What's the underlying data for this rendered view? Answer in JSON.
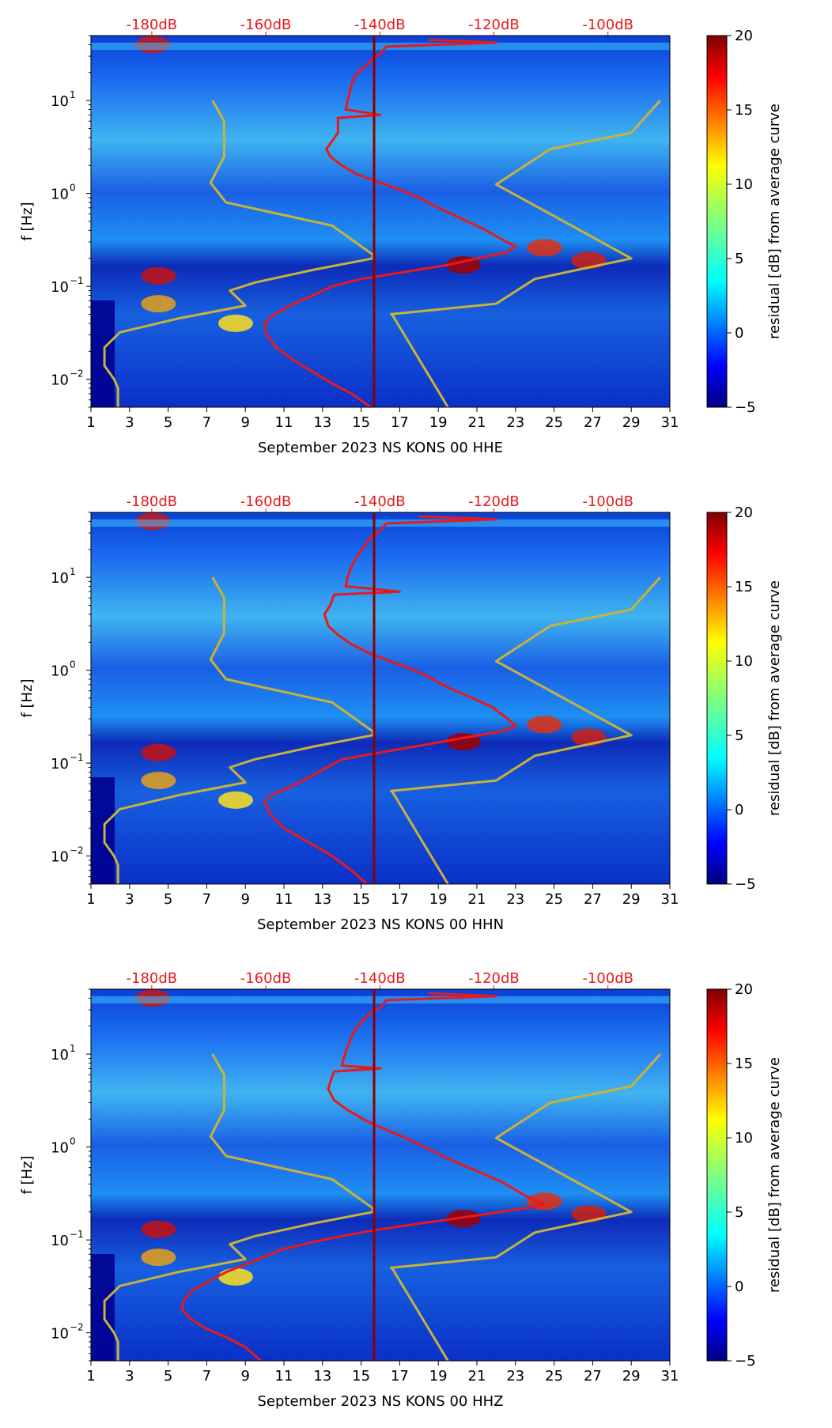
{
  "chart_data": [
    {
      "type": "heatmap",
      "title": "",
      "xlabel": "September 2023 NS KONS 00 HHE",
      "ylabel": "f [Hz]",
      "colorbar_label": "residual [dB] from average curve",
      "x_ticks": [
        1,
        3,
        5,
        7,
        9,
        11,
        13,
        15,
        17,
        19,
        21,
        23,
        25,
        27,
        29,
        31
      ],
      "x_range": [
        1,
        31
      ],
      "y_ticks": [
        {
          "value": 10,
          "label": "10",
          "exp": "1"
        },
        {
          "value": 1,
          "label": "10",
          "exp": "0"
        },
        {
          "value": 0.1,
          "label": "10",
          "exp": "−1"
        },
        {
          "value": 0.01,
          "label": "10",
          "exp": "−2"
        }
      ],
      "y_range": [
        0.005,
        50
      ],
      "colorbar_ticks": [
        20,
        15,
        10,
        5,
        0,
        -5
      ],
      "colorbar_range": [
        -5,
        20
      ],
      "top_axis_labels": [
        "-180dB",
        "-160dB",
        "-140dB",
        "-120dB",
        "-100dB"
      ],
      "series": [
        {
          "name": "average psd (red)",
          "points": [
            [
              18.5,
              45
            ],
            [
              21,
              43
            ],
            [
              22,
              42
            ],
            [
              16.3,
              38
            ],
            [
              16,
              32
            ],
            [
              15.6,
              28
            ],
            [
              15.3,
              24
            ],
            [
              14.8,
              20
            ],
            [
              14.5,
              15
            ],
            [
              14.4,
              12
            ],
            [
              14.3,
              10
            ],
            [
              14.2,
              8
            ],
            [
              16,
              7
            ],
            [
              13.8,
              6.5
            ],
            [
              13.8,
              4.5
            ],
            [
              13.2,
              3
            ],
            [
              13.4,
              2.5
            ],
            [
              14,
              2
            ],
            [
              14.8,
              1.6
            ],
            [
              16,
              1.3
            ],
            [
              17,
              1.1
            ],
            [
              18,
              0.9
            ],
            [
              19,
              0.7
            ],
            [
              20.5,
              0.5
            ],
            [
              21.5,
              0.4
            ],
            [
              22.3,
              0.32
            ],
            [
              23,
              0.27
            ],
            [
              22.5,
              0.23
            ],
            [
              21,
              0.2
            ],
            [
              19.5,
              0.17
            ],
            [
              17,
              0.14
            ],
            [
              15,
              0.12
            ],
            [
              13.5,
              0.1
            ],
            [
              12.5,
              0.08
            ],
            [
              11.5,
              0.065
            ],
            [
              10.5,
              0.05
            ],
            [
              10,
              0.04
            ],
            [
              10.1,
              0.03
            ],
            [
              10.6,
              0.022
            ],
            [
              11.5,
              0.016
            ],
            [
              12.5,
              0.012
            ],
            [
              13.5,
              0.009
            ],
            [
              14.5,
              0.007
            ],
            [
              15.5,
              0.005
            ]
          ]
        },
        {
          "name": "noise model (yellow)",
          "points": [
            [
              2.4,
              0.005
            ],
            [
              2.4,
              0.008
            ],
            [
              2.2,
              0.01
            ],
            [
              1.7,
              0.014
            ],
            [
              1.7,
              0.022
            ],
            [
              2.5,
              0.032
            ],
            [
              5.5,
              0.045
            ],
            [
              9,
              0.062
            ],
            [
              8.2,
              0.09
            ],
            [
              9.5,
              0.11
            ],
            [
              12.5,
              0.15
            ],
            [
              15.6,
              0.2
            ],
            [
              15.6,
              0.22
            ],
            [
              13.5,
              0.45
            ],
            [
              8,
              0.8
            ],
            [
              7.2,
              1.3
            ],
            [
              7.9,
              2.5
            ],
            [
              7.9,
              6
            ],
            [
              7.3,
              10
            ]
          ]
        },
        {
          "name": "noise model (yellow)",
          "points": [
            [
              16.5,
              0.05
            ],
            [
              22,
              0.065
            ],
            [
              24,
              0.12
            ],
            [
              29,
              0.2
            ],
            [
              22,
              1.25
            ],
            [
              24.8,
              3
            ],
            [
              29,
              4.5
            ],
            [
              30.5,
              10
            ]
          ]
        },
        {
          "name": "noise model (yellow)",
          "points": [
            [
              16.6,
              0.05
            ],
            [
              19.5,
              0.005
            ]
          ]
        }
      ]
    },
    {
      "type": "heatmap",
      "title": "",
      "xlabel": "September 2023 NS KONS 00 HHN",
      "ylabel": "f [Hz]",
      "colorbar_label": "residual [dB] from average curve",
      "x_ticks": [
        1,
        3,
        5,
        7,
        9,
        11,
        13,
        15,
        17,
        19,
        21,
        23,
        25,
        27,
        29,
        31
      ],
      "x_range": [
        1,
        31
      ],
      "y_ticks": [
        {
          "value": 10,
          "label": "10",
          "exp": "1"
        },
        {
          "value": 1,
          "label": "10",
          "exp": "0"
        },
        {
          "value": 0.1,
          "label": "10",
          "exp": "−1"
        },
        {
          "value": 0.01,
          "label": "10",
          "exp": "−2"
        }
      ],
      "y_range": [
        0.005,
        50
      ],
      "colorbar_ticks": [
        20,
        15,
        10,
        5,
        0,
        -5
      ],
      "colorbar_range": [
        -5,
        20
      ],
      "top_axis_labels": [
        "-180dB",
        "-160dB",
        "-140dB",
        "-120dB",
        "-100dB"
      ],
      "series": [
        {
          "name": "average psd (red)",
          "points": [
            [
              18,
              45
            ],
            [
              21,
              43
            ],
            [
              22,
              42
            ],
            [
              16.3,
              38
            ],
            [
              16,
              32
            ],
            [
              15.5,
              27
            ],
            [
              15.2,
              22
            ],
            [
              14.8,
              17
            ],
            [
              14.5,
              13
            ],
            [
              14.3,
              10
            ],
            [
              14.2,
              8
            ],
            [
              17,
              7
            ],
            [
              13.6,
              6.5
            ],
            [
              13.4,
              5
            ],
            [
              13.1,
              4
            ],
            [
              13.3,
              3
            ],
            [
              13.8,
              2.4
            ],
            [
              14.5,
              1.9
            ],
            [
              15.5,
              1.5
            ],
            [
              16.5,
              1.25
            ],
            [
              17.5,
              1.05
            ],
            [
              18.5,
              0.85
            ],
            [
              19.5,
              0.65
            ],
            [
              20.8,
              0.5
            ],
            [
              21.8,
              0.4
            ],
            [
              22.6,
              0.3
            ],
            [
              23,
              0.25
            ],
            [
              22.3,
              0.22
            ],
            [
              20.5,
              0.19
            ],
            [
              18.5,
              0.16
            ],
            [
              16,
              0.13
            ],
            [
              14,
              0.11
            ],
            [
              13,
              0.085
            ],
            [
              12.3,
              0.07
            ],
            [
              11.3,
              0.055
            ],
            [
              10.3,
              0.045
            ],
            [
              10,
              0.038
            ],
            [
              10.3,
              0.028
            ],
            [
              11,
              0.02
            ],
            [
              12.3,
              0.014
            ],
            [
              13.5,
              0.01
            ],
            [
              14.5,
              0.007
            ],
            [
              15.3,
              0.005
            ]
          ]
        },
        {
          "name": "noise model (yellow)",
          "points": [
            [
              2.4,
              0.005
            ],
            [
              2.4,
              0.008
            ],
            [
              2.2,
              0.01
            ],
            [
              1.7,
              0.014
            ],
            [
              1.7,
              0.022
            ],
            [
              2.5,
              0.032
            ],
            [
              5.5,
              0.045
            ],
            [
              9,
              0.062
            ],
            [
              8.2,
              0.09
            ],
            [
              9.5,
              0.11
            ],
            [
              12.5,
              0.15
            ],
            [
              15.6,
              0.2
            ],
            [
              15.6,
              0.22
            ],
            [
              13.5,
              0.45
            ],
            [
              8,
              0.8
            ],
            [
              7.2,
              1.3
            ],
            [
              7.9,
              2.5
            ],
            [
              7.9,
              6
            ],
            [
              7.3,
              10
            ]
          ]
        },
        {
          "name": "noise model (yellow)",
          "points": [
            [
              16.5,
              0.05
            ],
            [
              22,
              0.065
            ],
            [
              24,
              0.12
            ],
            [
              29,
              0.2
            ],
            [
              22,
              1.25
            ],
            [
              24.8,
              3
            ],
            [
              29,
              4.5
            ],
            [
              30.5,
              10
            ]
          ]
        },
        {
          "name": "noise model (yellow)",
          "points": [
            [
              16.6,
              0.05
            ],
            [
              19.5,
              0.005
            ]
          ]
        }
      ]
    },
    {
      "type": "heatmap",
      "title": "",
      "xlabel": "September 2023 NS KONS 00 HHZ",
      "ylabel": "f [Hz]",
      "colorbar_label": "residual [dB] from average curve",
      "x_ticks": [
        1,
        3,
        5,
        7,
        9,
        11,
        13,
        15,
        17,
        19,
        21,
        23,
        25,
        27,
        29,
        31
      ],
      "x_range": [
        1,
        31
      ],
      "y_ticks": [
        {
          "value": 10,
          "label": "10",
          "exp": "1"
        },
        {
          "value": 1,
          "label": "10",
          "exp": "0"
        },
        {
          "value": 0.1,
          "label": "10",
          "exp": "−1"
        },
        {
          "value": 0.01,
          "label": "10",
          "exp": "−2"
        }
      ],
      "y_range": [
        0.005,
        50
      ],
      "colorbar_ticks": [
        20,
        15,
        10,
        5,
        0,
        -5
      ],
      "colorbar_range": [
        -5,
        20
      ],
      "top_axis_labels": [
        "-180dB",
        "-160dB",
        "-140dB",
        "-120dB",
        "-100dB"
      ],
      "series": [
        {
          "name": "average psd (red)",
          "points": [
            [
              18.5,
              45
            ],
            [
              21,
              43
            ],
            [
              22,
              42
            ],
            [
              16.3,
              38
            ],
            [
              16,
              32
            ],
            [
              15.5,
              28
            ],
            [
              15,
              22
            ],
            [
              14.6,
              17
            ],
            [
              14.3,
              12
            ],
            [
              14.1,
              9
            ],
            [
              14,
              7.5
            ],
            [
              16,
              7
            ],
            [
              13.6,
              6.5
            ],
            [
              13.4,
              5
            ],
            [
              13.3,
              4.2
            ],
            [
              13.6,
              3.2
            ],
            [
              14.3,
              2.5
            ],
            [
              15.3,
              1.9
            ],
            [
              16.4,
              1.5
            ],
            [
              17.5,
              1.2
            ],
            [
              18.5,
              0.95
            ],
            [
              19.5,
              0.75
            ],
            [
              21,
              0.55
            ],
            [
              22.3,
              0.42
            ],
            [
              23.5,
              0.3
            ],
            [
              24.5,
              0.24
            ],
            [
              23.5,
              0.22
            ],
            [
              21.5,
              0.19
            ],
            [
              19,
              0.16
            ],
            [
              17,
              0.14
            ],
            [
              15,
              0.12
            ],
            [
              13,
              0.1
            ],
            [
              11,
              0.08
            ],
            [
              9.5,
              0.06
            ],
            [
              8,
              0.045
            ],
            [
              7,
              0.035
            ],
            [
              6.2,
              0.028
            ],
            [
              5.8,
              0.022
            ],
            [
              5.7,
              0.018
            ],
            [
              6.2,
              0.014
            ],
            [
              7,
              0.011
            ],
            [
              8,
              0.009
            ],
            [
              9,
              0.007
            ],
            [
              9.8,
              0.005
            ]
          ]
        },
        {
          "name": "noise model (yellow)",
          "points": [
            [
              2.4,
              0.005
            ],
            [
              2.4,
              0.008
            ],
            [
              2.2,
              0.01
            ],
            [
              1.7,
              0.014
            ],
            [
              1.7,
              0.022
            ],
            [
              2.5,
              0.032
            ],
            [
              5.5,
              0.045
            ],
            [
              9,
              0.062
            ],
            [
              8.2,
              0.09
            ],
            [
              9.5,
              0.11
            ],
            [
              12.5,
              0.15
            ],
            [
              15.6,
              0.2
            ],
            [
              15.6,
              0.22
            ],
            [
              13.5,
              0.45
            ],
            [
              8,
              0.8
            ],
            [
              7.2,
              1.3
            ],
            [
              7.9,
              2.5
            ],
            [
              7.9,
              6
            ],
            [
              7.3,
              10
            ]
          ]
        },
        {
          "name": "noise model (yellow)",
          "points": [
            [
              16.5,
              0.05
            ],
            [
              22,
              0.065
            ],
            [
              24,
              0.12
            ],
            [
              29,
              0.2
            ],
            [
              22,
              1.25
            ],
            [
              24.8,
              3
            ],
            [
              29,
              4.5
            ],
            [
              30.5,
              10
            ]
          ]
        },
        {
          "name": "noise model (yellow)",
          "points": [
            [
              16.6,
              0.05
            ],
            [
              19.5,
              0.005
            ]
          ]
        }
      ]
    }
  ],
  "colors": {
    "psd_line": "#e8191c",
    "model_line": "#c8b23a",
    "top_label": "#e8191c",
    "day_marker": "#8b0000",
    "jet_low": "#00008f",
    "jet_mid": "#00bfff",
    "jet_high": "#800000"
  }
}
